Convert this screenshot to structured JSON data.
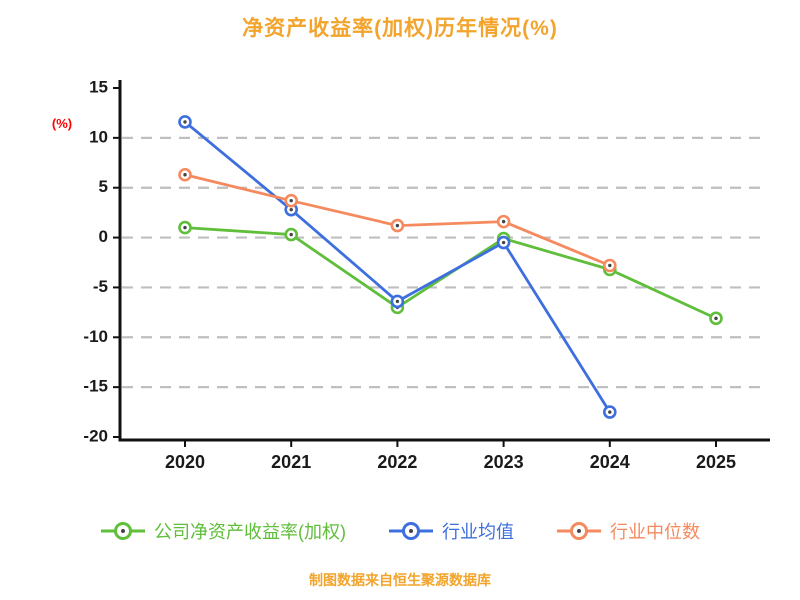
{
  "title": "净资产收益率(加权)历年情况(%)",
  "footer": "制图数据来自恒生聚源数据库",
  "axis_color": "#111111",
  "grid_color": "#bfbfbf",
  "tick_label_color": "#1a1a1a",
  "ylabel_color": "#ff0000",
  "chart_data": {
    "type": "line",
    "title": "净资产收益率(加权)历年情况(%)",
    "xlabel": "",
    "ylabel": "(%)",
    "x": [
      "2020",
      "2021",
      "2022",
      "2023",
      "2024",
      "2025"
    ],
    "ylim": [
      -20,
      15
    ],
    "yticks": [
      15,
      10,
      5,
      0,
      -5,
      -10,
      -15,
      -20
    ],
    "grid": "dashed horizontal",
    "legend_position": "bottom",
    "series": [
      {
        "name": "公司净资产收益率(加权)",
        "color": "#5FBE3A",
        "values": [
          1.0,
          0.3,
          -7.0,
          -0.1,
          -3.2,
          -8.1
        ]
      },
      {
        "name": "行业均值",
        "color": "#3E6FDE",
        "values": [
          11.6,
          2.8,
          -6.4,
          -0.5,
          -17.5,
          null
        ]
      },
      {
        "name": "行业中位数",
        "color": "#F58A5F",
        "values": [
          6.3,
          3.7,
          1.2,
          1.6,
          -2.8,
          null
        ]
      }
    ]
  }
}
